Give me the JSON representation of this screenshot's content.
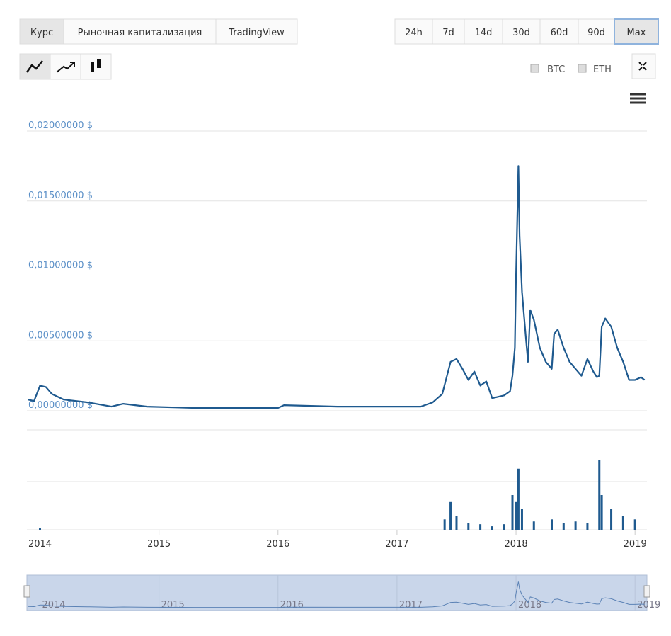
{
  "ui": {
    "tabs": [
      "Курс",
      "Рыночная капитализация",
      "TradingView"
    ],
    "ranges": [
      "24h",
      "7d",
      "14d",
      "30d",
      "60d",
      "90d",
      "Max"
    ],
    "toggles": [
      "BTC",
      "ETH"
    ]
  },
  "chart_data": {
    "type": "line",
    "color": "#1f5a8f",
    "x": [
      2013.9,
      2013.95,
      2014.0,
      2014.05,
      2014.1,
      2014.2,
      2014.4,
      2014.6,
      2014.7,
      2014.9,
      2015.3,
      2015.5,
      2016.0,
      2016.05,
      2016.5,
      2017.0,
      2017.2,
      2017.3,
      2017.38,
      2017.42,
      2017.45,
      2017.5,
      2017.55,
      2017.6,
      2017.65,
      2017.7,
      2017.75,
      2017.8,
      2017.9,
      2017.95,
      2017.97,
      2017.99,
      2018.0,
      2018.02,
      2018.03,
      2018.05,
      2018.08,
      2018.1,
      2018.12,
      2018.15,
      2018.2,
      2018.25,
      2018.3,
      2018.32,
      2018.35,
      2018.4,
      2018.45,
      2018.5,
      2018.55,
      2018.6,
      2018.65,
      2018.68,
      2018.7,
      2018.72,
      2018.75,
      2018.8,
      2018.85,
      2018.9,
      2018.95,
      2019.0,
      2019.05,
      2019.08
    ],
    "values": [
      0.0008,
      0.0007,
      0.0018,
      0.0017,
      0.0012,
      0.0008,
      0.0006,
      0.0003,
      0.0005,
      0.0003,
      0.0002,
      0.0002,
      0.0002,
      0.0004,
      0.0003,
      0.0003,
      0.0003,
      0.0006,
      0.0012,
      0.0025,
      0.0035,
      0.0037,
      0.003,
      0.0022,
      0.0028,
      0.0018,
      0.0021,
      0.0009,
      0.0011,
      0.0014,
      0.0025,
      0.0045,
      0.0095,
      0.0175,
      0.0125,
      0.0085,
      0.0055,
      0.0035,
      0.0072,
      0.0065,
      0.0045,
      0.0035,
      0.003,
      0.0055,
      0.0058,
      0.0045,
      0.0035,
      0.003,
      0.0025,
      0.0037,
      0.0028,
      0.0024,
      0.0025,
      0.006,
      0.0066,
      0.006,
      0.0045,
      0.0035,
      0.0022,
      0.0022,
      0.0024,
      0.0022
    ],
    "xlim": [
      2013.89,
      2019.1
    ],
    "xticks": [
      2014,
      2015,
      2016,
      2017,
      2018,
      2019
    ],
    "ylim": [
      0,
      0.02
    ],
    "yticks": [
      {
        "value": 0,
        "label": "0,00000000 $"
      },
      {
        "value": 0.005,
        "label": "0,00500000 $"
      },
      {
        "value": 0.01,
        "label": "0,01000000 $"
      },
      {
        "value": 0.015,
        "label": "0,01500000 $"
      },
      {
        "value": 0.02,
        "label": "0,02000000 $"
      }
    ],
    "grid": true,
    "volume": {
      "color": "#1f5a8f",
      "ylim": [
        0,
        100
      ],
      "x": [
        2014.0,
        2017.4,
        2017.45,
        2017.5,
        2017.6,
        2017.7,
        2017.8,
        2017.9,
        2017.97,
        2018.0,
        2018.02,
        2018.05,
        2018.15,
        2018.3,
        2018.4,
        2018.5,
        2018.6,
        2018.7,
        2018.72,
        2018.8,
        2018.9,
        2019.0
      ],
      "values": [
        2,
        15,
        40,
        20,
        10,
        8,
        5,
        8,
        50,
        40,
        88,
        30,
        12,
        15,
        10,
        12,
        10,
        100,
        50,
        30,
        20,
        15
      ]
    }
  }
}
